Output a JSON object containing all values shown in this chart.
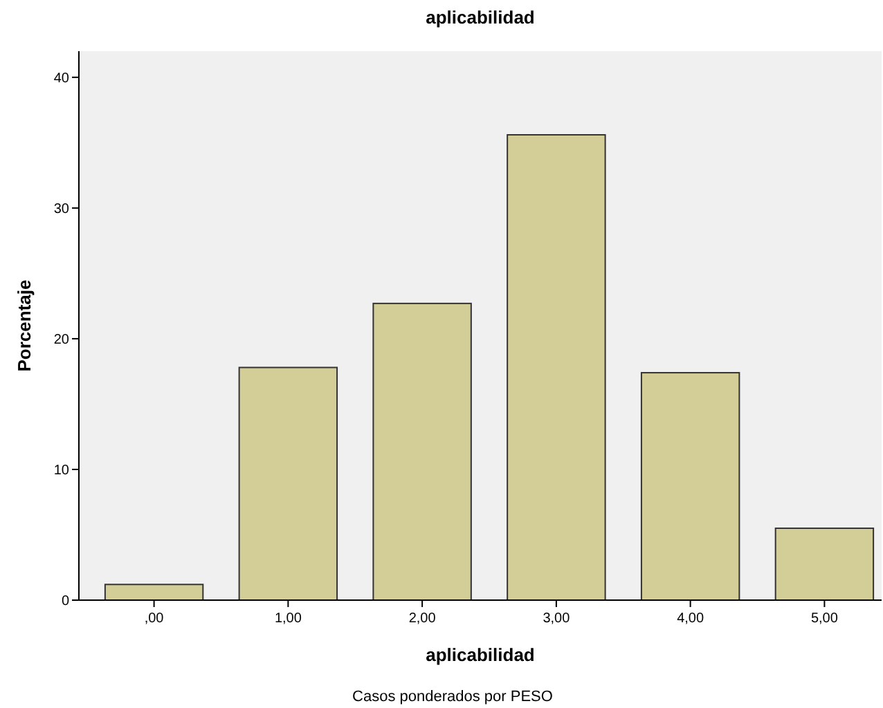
{
  "chart_data": {
    "type": "bar",
    "title": "aplicabilidad",
    "xlabel": "aplicabilidad",
    "ylabel": "Porcentaje",
    "categories": [
      ",00",
      "1,00",
      "2,00",
      "3,00",
      "4,00",
      "5,00"
    ],
    "values": [
      1.2,
      17.8,
      22.7,
      35.6,
      17.4,
      5.5
    ],
    "color": "#d3ce98",
    "ylim": [
      0,
      42
    ],
    "yticks": [
      0,
      10,
      20,
      30,
      40
    ],
    "grid": false,
    "annotations": [
      "Casos ponderados por PESO"
    ]
  }
}
